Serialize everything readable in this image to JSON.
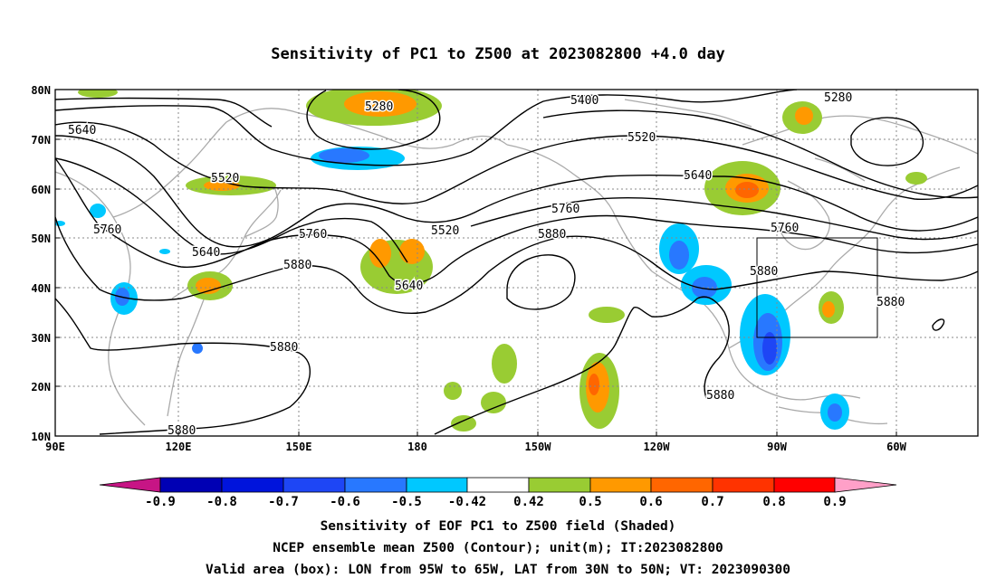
{
  "title": "Sensitivity of PC1 to Z500 at 2023082800 +4.0 day",
  "map": {
    "lat_labels": [
      "80N",
      "70N",
      "60N",
      "50N",
      "40N",
      "30N",
      "20N",
      "10N"
    ],
    "lon_labels": [
      "90E",
      "120E",
      "150E",
      "180",
      "150W",
      "120W",
      "90W",
      "60W"
    ],
    "lon_range": [
      "90E",
      "300E"
    ],
    "lat_range": [
      "10N",
      "80N"
    ],
    "contour_labels": [
      {
        "text": "5280"
      },
      {
        "text": "5280"
      },
      {
        "text": "5400"
      },
      {
        "text": "5520"
      },
      {
        "text": "5520"
      },
      {
        "text": "5520"
      },
      {
        "text": "5640"
      },
      {
        "text": "5640"
      },
      {
        "text": "5640"
      },
      {
        "text": "5640"
      },
      {
        "text": "5760"
      },
      {
        "text": "5760"
      },
      {
        "text": "5760"
      },
      {
        "text": "5760"
      },
      {
        "text": "5880"
      },
      {
        "text": "5880"
      },
      {
        "text": "5880"
      },
      {
        "text": "5880"
      },
      {
        "text": "5880"
      },
      {
        "text": "5880"
      },
      {
        "text": "5880"
      }
    ],
    "valid_box": {
      "lon_from": "95W",
      "lon_to": "65W",
      "lat_from": "30N",
      "lat_to": "50N"
    },
    "colors": {
      "contour": "#000000",
      "coast": "#aaaaaa",
      "grid": "#888888"
    }
  },
  "colorbar": {
    "ticks": [
      "-0.9",
      "-0.8",
      "-0.7",
      "-0.6",
      "-0.5",
      "-0.42",
      "0.42",
      "0.5",
      "0.6",
      "0.7",
      "0.8",
      "0.9"
    ],
    "colors": [
      "#c71585",
      "#0000b4",
      "#0014dc",
      "#1e46f5",
      "#2878ff",
      "#00c8ff",
      "#ffffff",
      "#99cc33",
      "#ff9900",
      "#ff6600",
      "#ff3300",
      "#ff0000",
      "#ffa0c8"
    ]
  },
  "captions": [
    "Sensitivity of EOF PC1 to Z500 field (Shaded)",
    "NCEP ensemble mean Z500 (Contour); unit(m); IT:2023082800",
    "Valid area (box): LON from 95W to 65W, LAT from 30N to 50N; VT: 2023090300"
  ]
}
